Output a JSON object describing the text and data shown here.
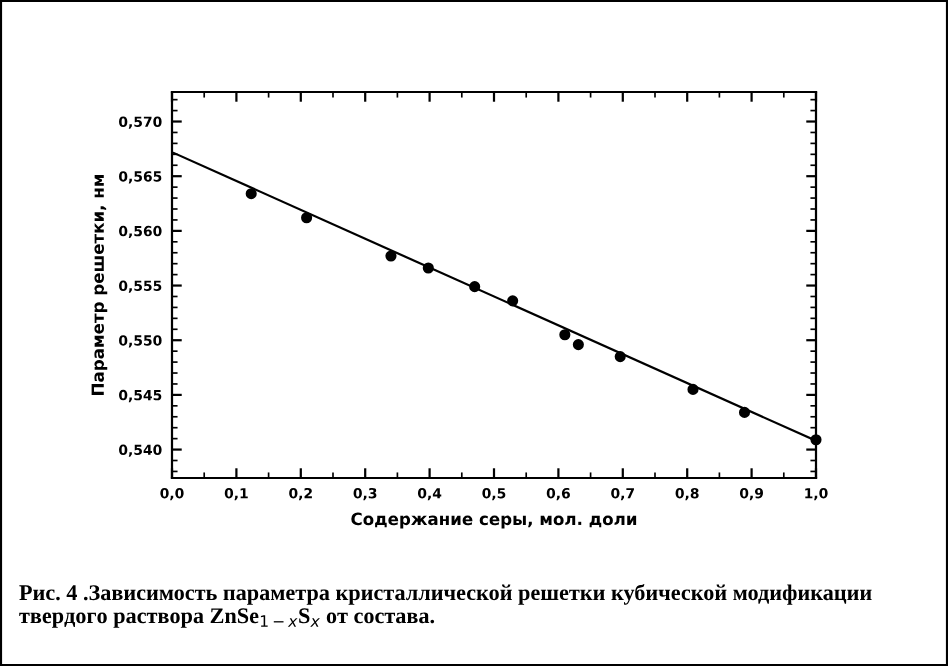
{
  "chart_data": {
    "type": "scatter",
    "xlabel": "Содержание серы, мол. доли",
    "ylabel": "Параметр решетки, нм",
    "annotations": [
      "Рис. 4 .Зависимость параметра кристаллической решетки кубической модификации твердого раствора ZnSe$_{1−x}$S$_{x}$ от состава."
    ],
    "marker": "circle",
    "grid": false,
    "legend": false,
    "xlim": [
      0,
      1
    ],
    "ylim": [
      0.5374,
      0.5727
    ],
    "xticks": [
      {
        "value": 0,
        "label": "0,0"
      },
      {
        "value": 0.1,
        "label": "0,1"
      },
      {
        "value": 0.2,
        "label": "0,2"
      },
      {
        "value": 0.3,
        "label": "0,3"
      },
      {
        "value": 0.4,
        "label": "0,4"
      },
      {
        "value": 0.5,
        "label": "0,5"
      },
      {
        "value": 0.6,
        "label": "0,6"
      },
      {
        "value": 0.7,
        "label": "0,7"
      },
      {
        "value": 0.8,
        "label": "0,8"
      },
      {
        "value": 0.9,
        "label": "0,9"
      },
      {
        "value": 1.0,
        "label": "1,0"
      }
    ],
    "yticks": [
      {
        "value": 0.54,
        "label": "0,540"
      },
      {
        "value": 0.545,
        "label": "0,545"
      },
      {
        "value": 0.55,
        "label": "0,550"
      },
      {
        "value": 0.555,
        "label": "0,555"
      },
      {
        "value": 0.56,
        "label": "0,560"
      },
      {
        "value": 0.565,
        "label": "0,565"
      },
      {
        "value": 0.57,
        "label": "0,570"
      }
    ],
    "series": [
      {
        "color": "#000000",
        "x": [
          0.123,
          0.209,
          0.34,
          0.398,
          0.47,
          0.529,
          0.61,
          0.631,
          0.696,
          0.809,
          0.889,
          1.0
        ],
        "values": [
          0.5634,
          0.5612,
          0.5577,
          0.5566,
          0.5549,
          0.5536,
          0.5505,
          0.5496,
          0.5485,
          0.5455,
          0.5434,
          0.5409
        ]
      },
      {
        "type": "line",
        "color": "#000000",
        "marker": "none",
        "x": [
          0,
          1.0
        ],
        "values": [
          0.5672,
          0.5408
        ]
      }
    ]
  }
}
